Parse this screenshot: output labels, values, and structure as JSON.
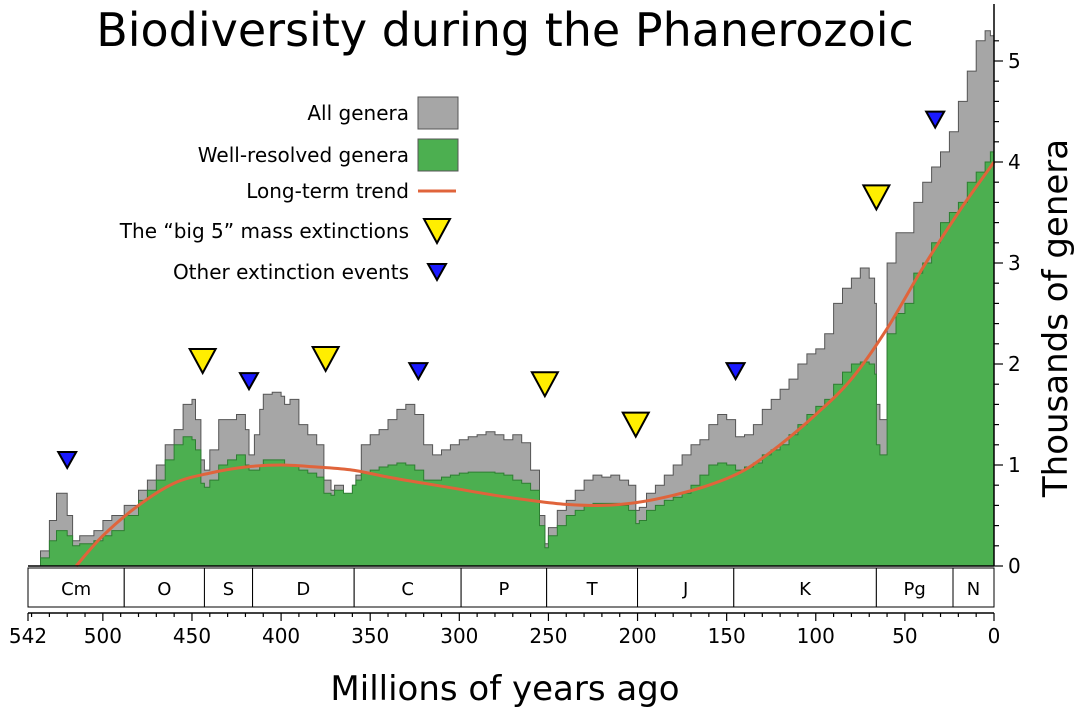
{
  "chart_data": {
    "type": "area",
    "title": "Biodiversity during the Phanerozoic",
    "xlabel": "Millions of years ago",
    "ylabel": "Thousands of genera",
    "x_reversed": true,
    "xlim": [
      542,
      0
    ],
    "ylim": [
      0,
      5.5
    ],
    "x_ticks": [
      542,
      500,
      450,
      400,
      350,
      300,
      250,
      200,
      150,
      100,
      50,
      0
    ],
    "y_ticks": [
      0,
      1,
      2,
      3,
      4,
      5
    ],
    "grid": false,
    "legend_position": "upper-center",
    "legend": [
      {
        "label": "All genera",
        "kind": "area",
        "color": "#a6a6a6"
      },
      {
        "label": "Well-resolved genera",
        "kind": "area",
        "color": "#4caf50"
      },
      {
        "label": "Long-term trend",
        "kind": "line",
        "color": "#e0643b"
      },
      {
        "label": "The “big 5” mass extinctions",
        "kind": "triangle-large",
        "color": "#ffee00"
      },
      {
        "label": "Other extinction events",
        "kind": "triangle-small",
        "color": "#1a1aff"
      }
    ],
    "series": [
      {
        "name": "All genera",
        "color": "#a6a6a6",
        "x": [
          542,
          535,
          530,
          526,
          520,
          517,
          513,
          505,
          500,
          495,
          488,
          480,
          475,
          470,
          465,
          460,
          455,
          450,
          448,
          445,
          443,
          440,
          435,
          430,
          425,
          420,
          418,
          415,
          412,
          410,
          405,
          400,
          398,
          395,
          390,
          385,
          380,
          376,
          372,
          370,
          365,
          360,
          358,
          355,
          350,
          345,
          340,
          335,
          330,
          325,
          320,
          315,
          310,
          305,
          300,
          295,
          290,
          285,
          280,
          275,
          270,
          265,
          260,
          255,
          252,
          250,
          245,
          240,
          235,
          230,
          225,
          220,
          215,
          210,
          205,
          201,
          199,
          195,
          190,
          185,
          180,
          175,
          170,
          165,
          160,
          155,
          150,
          145,
          140,
          135,
          130,
          125,
          120,
          115,
          110,
          105,
          100,
          95,
          90,
          85,
          80,
          75,
          70,
          67,
          66,
          64,
          60,
          55,
          50,
          45,
          40,
          35,
          30,
          25,
          20,
          15,
          10,
          5,
          2,
          0
        ],
        "y": [
          0.0,
          0.15,
          0.45,
          0.72,
          0.5,
          0.25,
          0.3,
          0.35,
          0.45,
          0.5,
          0.6,
          0.75,
          0.85,
          1.0,
          1.2,
          1.35,
          1.6,
          1.65,
          1.45,
          1.05,
          0.95,
          1.15,
          1.45,
          1.45,
          1.5,
          1.35,
          1.1,
          1.3,
          1.55,
          1.7,
          1.72,
          1.68,
          1.6,
          1.65,
          1.4,
          1.3,
          1.2,
          0.85,
          0.75,
          0.8,
          0.7,
          0.8,
          0.9,
          1.2,
          1.3,
          1.35,
          1.45,
          1.55,
          1.6,
          1.5,
          1.2,
          1.1,
          1.15,
          1.2,
          1.25,
          1.28,
          1.3,
          1.33,
          1.3,
          1.25,
          1.3,
          1.22,
          0.95,
          0.5,
          0.22,
          0.38,
          0.55,
          0.65,
          0.75,
          0.85,
          0.9,
          0.88,
          0.9,
          0.85,
          0.8,
          0.55,
          0.58,
          0.72,
          0.8,
          0.9,
          1.0,
          1.1,
          1.2,
          1.25,
          1.4,
          1.5,
          1.45,
          1.28,
          1.3,
          1.4,
          1.55,
          1.65,
          1.75,
          1.85,
          2.0,
          2.1,
          2.15,
          2.3,
          2.6,
          2.75,
          2.85,
          2.95,
          2.85,
          2.6,
          1.6,
          1.45,
          3.0,
          3.3,
          3.3,
          3.6,
          3.8,
          3.95,
          4.1,
          4.3,
          4.6,
          4.9,
          5.2,
          5.3,
          5.25,
          5.35
        ]
      },
      {
        "name": "Well-resolved genera",
        "color": "#4caf50",
        "x": [
          542,
          535,
          530,
          526,
          520,
          517,
          513,
          505,
          500,
          495,
          488,
          480,
          475,
          470,
          465,
          460,
          455,
          450,
          448,
          445,
          443,
          440,
          435,
          430,
          425,
          420,
          418,
          415,
          412,
          410,
          405,
          400,
          398,
          395,
          390,
          385,
          380,
          376,
          372,
          370,
          365,
          360,
          358,
          355,
          350,
          345,
          340,
          335,
          330,
          325,
          320,
          315,
          310,
          305,
          300,
          295,
          290,
          285,
          280,
          275,
          270,
          265,
          260,
          255,
          252,
          250,
          245,
          240,
          235,
          230,
          225,
          220,
          215,
          210,
          205,
          201,
          199,
          195,
          190,
          185,
          180,
          175,
          170,
          165,
          160,
          155,
          150,
          145,
          140,
          135,
          130,
          125,
          120,
          115,
          110,
          105,
          100,
          95,
          90,
          85,
          80,
          75,
          70,
          67,
          66,
          64,
          60,
          55,
          50,
          45,
          40,
          35,
          30,
          25,
          20,
          15,
          10,
          5,
          2,
          0
        ],
        "y": [
          0.0,
          0.08,
          0.25,
          0.35,
          0.3,
          0.2,
          0.22,
          0.25,
          0.3,
          0.35,
          0.5,
          0.65,
          0.75,
          0.85,
          1.05,
          1.2,
          1.28,
          1.25,
          1.15,
          0.82,
          0.78,
          0.85,
          1.0,
          1.05,
          1.1,
          1.0,
          0.95,
          0.95,
          1.0,
          1.05,
          1.05,
          1.05,
          1.0,
          1.0,
          0.95,
          0.92,
          0.88,
          0.72,
          0.7,
          0.75,
          0.72,
          0.8,
          0.85,
          0.92,
          0.95,
          0.98,
          1.0,
          1.02,
          1.0,
          0.95,
          0.85,
          0.85,
          0.88,
          0.9,
          0.92,
          0.93,
          0.93,
          0.93,
          0.92,
          0.9,
          0.85,
          0.82,
          0.75,
          0.4,
          0.18,
          0.3,
          0.4,
          0.5,
          0.55,
          0.6,
          0.62,
          0.62,
          0.62,
          0.6,
          0.55,
          0.42,
          0.45,
          0.55,
          0.6,
          0.65,
          0.68,
          0.72,
          0.8,
          0.9,
          1.0,
          1.02,
          1.0,
          0.95,
          0.98,
          1.02,
          1.1,
          1.15,
          1.2,
          1.3,
          1.4,
          1.5,
          1.58,
          1.65,
          1.8,
          1.92,
          2.0,
          2.02,
          2.0,
          1.9,
          1.2,
          1.1,
          2.3,
          2.5,
          2.6,
          2.9,
          3.0,
          3.2,
          3.4,
          3.5,
          3.6,
          3.8,
          3.9,
          4.0,
          4.1,
          4.2
        ]
      },
      {
        "name": "Long-term trend",
        "color": "#e0643b",
        "x": [
          515,
          500,
          480,
          460,
          440,
          420,
          400,
          380,
          360,
          340,
          320,
          300,
          280,
          260,
          240,
          220,
          200,
          180,
          160,
          140,
          120,
          100,
          80,
          60,
          40,
          20,
          0
        ],
        "y": [
          0.0,
          0.3,
          0.6,
          0.82,
          0.92,
          0.98,
          1.0,
          0.98,
          0.95,
          0.88,
          0.82,
          0.76,
          0.7,
          0.65,
          0.61,
          0.6,
          0.63,
          0.7,
          0.8,
          0.95,
          1.2,
          1.5,
          1.85,
          2.35,
          2.95,
          3.5,
          4.0
        ]
      }
    ],
    "big5_extinctions": [
      {
        "x": 444,
        "y": 2.03
      },
      {
        "x": 375,
        "y": 2.05
      },
      {
        "x": 252,
        "y": 1.8
      },
      {
        "x": 201,
        "y": 1.4
      },
      {
        "x": 66,
        "y": 3.65
      }
    ],
    "other_extinctions": [
      {
        "x": 520,
        "y": 1.05
      },
      {
        "x": 418,
        "y": 1.83
      },
      {
        "x": 323,
        "y": 1.93
      },
      {
        "x": 145,
        "y": 1.93
      },
      {
        "x": 33,
        "y": 4.42
      }
    ],
    "periods": [
      {
        "label": "Cm",
        "start": 542,
        "end": 488
      },
      {
        "label": "O",
        "start": 488,
        "end": 443
      },
      {
        "label": "S",
        "start": 443,
        "end": 416
      },
      {
        "label": "D",
        "start": 416,
        "end": 359
      },
      {
        "label": "C",
        "start": 359,
        "end": 299
      },
      {
        "label": "P",
        "start": 299,
        "end": 251
      },
      {
        "label": "T",
        "start": 251,
        "end": 200
      },
      {
        "label": "J",
        "start": 200,
        "end": 146
      },
      {
        "label": "K",
        "start": 146,
        "end": 66
      },
      {
        "label": "Pg",
        "start": 66,
        "end": 23
      },
      {
        "label": "N",
        "start": 23,
        "end": 0
      }
    ]
  }
}
